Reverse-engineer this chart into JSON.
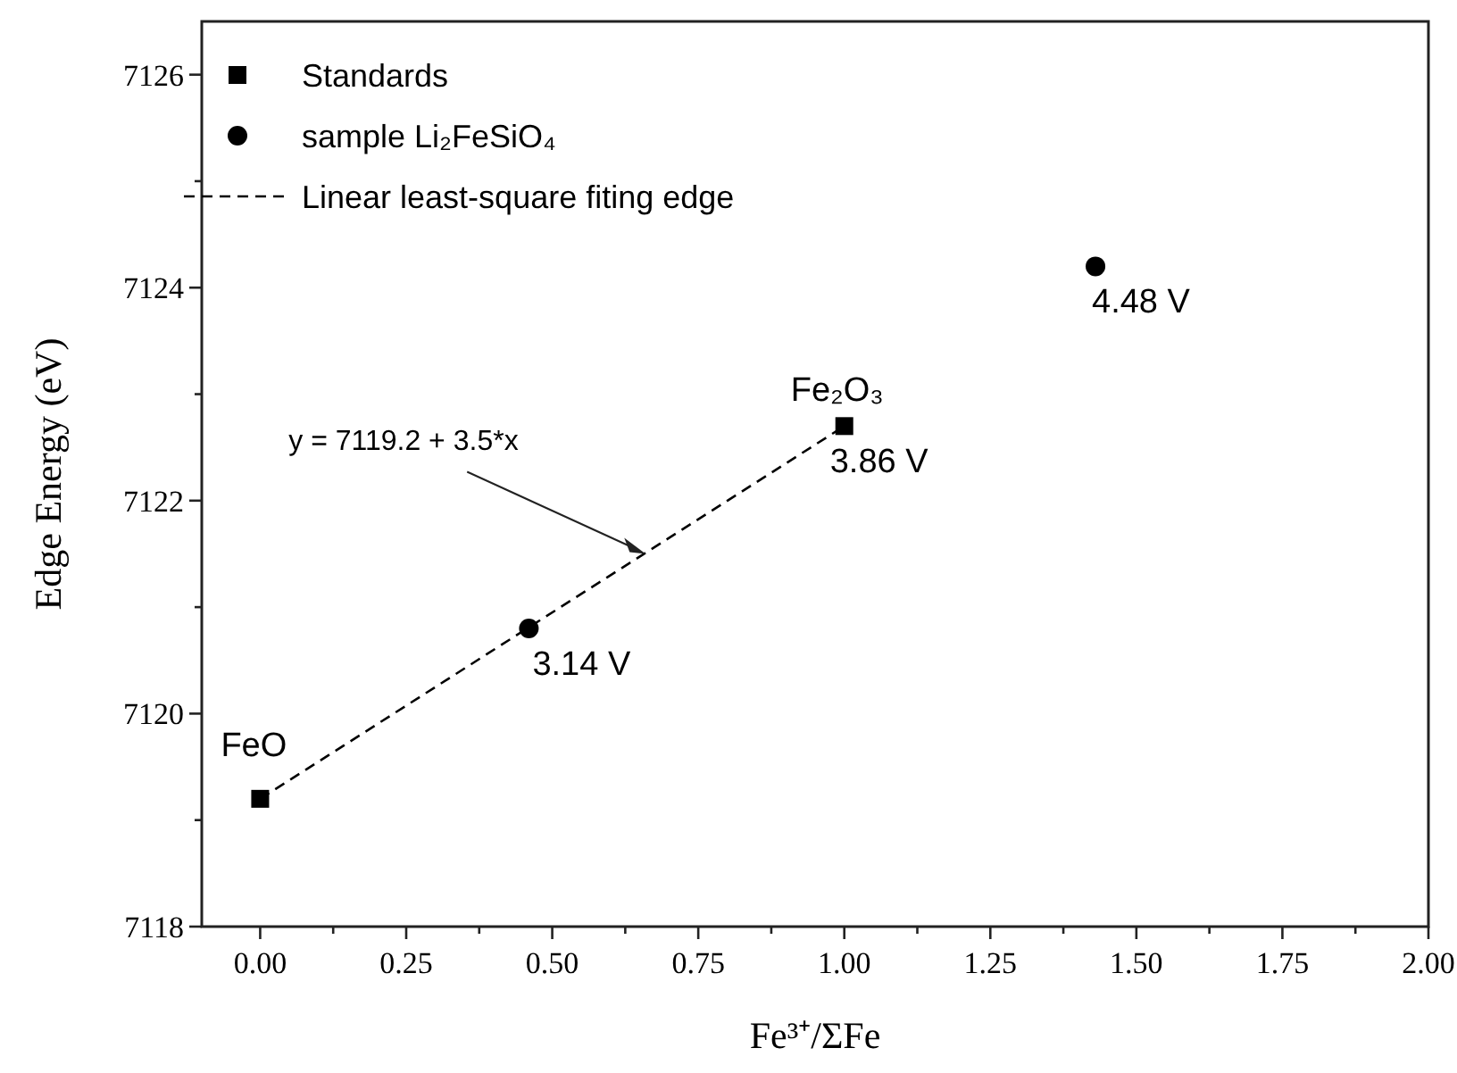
{
  "chart_data": {
    "type": "scatter",
    "xlabel": "Fe³⁺/ΣFe",
    "ylabel": "Edge Energy (eV)",
    "xlim": [
      -0.1,
      2.0
    ],
    "ylim": [
      7118,
      7126.5
    ],
    "xticks": [
      {
        "value": 0,
        "label": "0.00"
      },
      {
        "value": 0.125,
        "label": null
      },
      {
        "value": 0.25,
        "label": "0.25"
      },
      {
        "value": 0.375,
        "label": null
      },
      {
        "value": 0.5,
        "label": "0.50"
      },
      {
        "value": 0.625,
        "label": null
      },
      {
        "value": 0.75,
        "label": "0.75"
      },
      {
        "value": 0.875,
        "label": null
      },
      {
        "value": 1,
        "label": "1.00"
      },
      {
        "value": 1.125,
        "label": null
      },
      {
        "value": 1.25,
        "label": "1.25"
      },
      {
        "value": 1.375,
        "label": null
      },
      {
        "value": 1.5,
        "label": "1.50"
      },
      {
        "value": 1.625,
        "label": null
      },
      {
        "value": 1.75,
        "label": "1.75"
      },
      {
        "value": 1.875,
        "label": null
      },
      {
        "value": 2,
        "label": "2.00"
      }
    ],
    "yticks": [
      7118,
      {
        "value": 7119,
        "label": null
      },
      7120,
      {
        "value": 7121,
        "label": null
      },
      7122,
      {
        "value": 7123,
        "label": null
      },
      7124,
      {
        "value": 7125,
        "label": null
      },
      7126
    ],
    "grid": false,
    "legend": "top left",
    "series": [
      {
        "name": "Standards",
        "marker": "square",
        "color": "#000000",
        "x": [
          0,
          1
        ],
        "values": [
          7119.2,
          7122.7
        ]
      },
      {
        "name": "sample Li₂FeSiO₄",
        "marker": "circle",
        "color": "#000000",
        "x": [
          0.46,
          1.43
        ],
        "values": [
          7120.8,
          7124.2
        ]
      },
      {
        "name": "Linear least-square fiting edge",
        "type": "line",
        "marker": "none",
        "line_style": "dashed",
        "color": "#000000",
        "x": [
          0,
          1
        ],
        "values": [
          7119.2,
          7122.7
        ]
      }
    ],
    "annotations": [
      {
        "text": "FeO",
        "x": 0,
        "y": 7119.2
      },
      {
        "text": "Fe₂O₃",
        "x": 1,
        "y": 7122.7
      },
      {
        "text": "3.14 V",
        "x": 0.46,
        "y": 7120.8
      },
      {
        "text": "3.86 V",
        "x": 1,
        "y": 7122.7
      },
      {
        "text": "4.48 V",
        "x": 1.43,
        "y": 7124.2
      },
      {
        "text": "y = 7119.2 + 3.5*x",
        "x": 0.66,
        "y": 7121.5
      }
    ]
  }
}
